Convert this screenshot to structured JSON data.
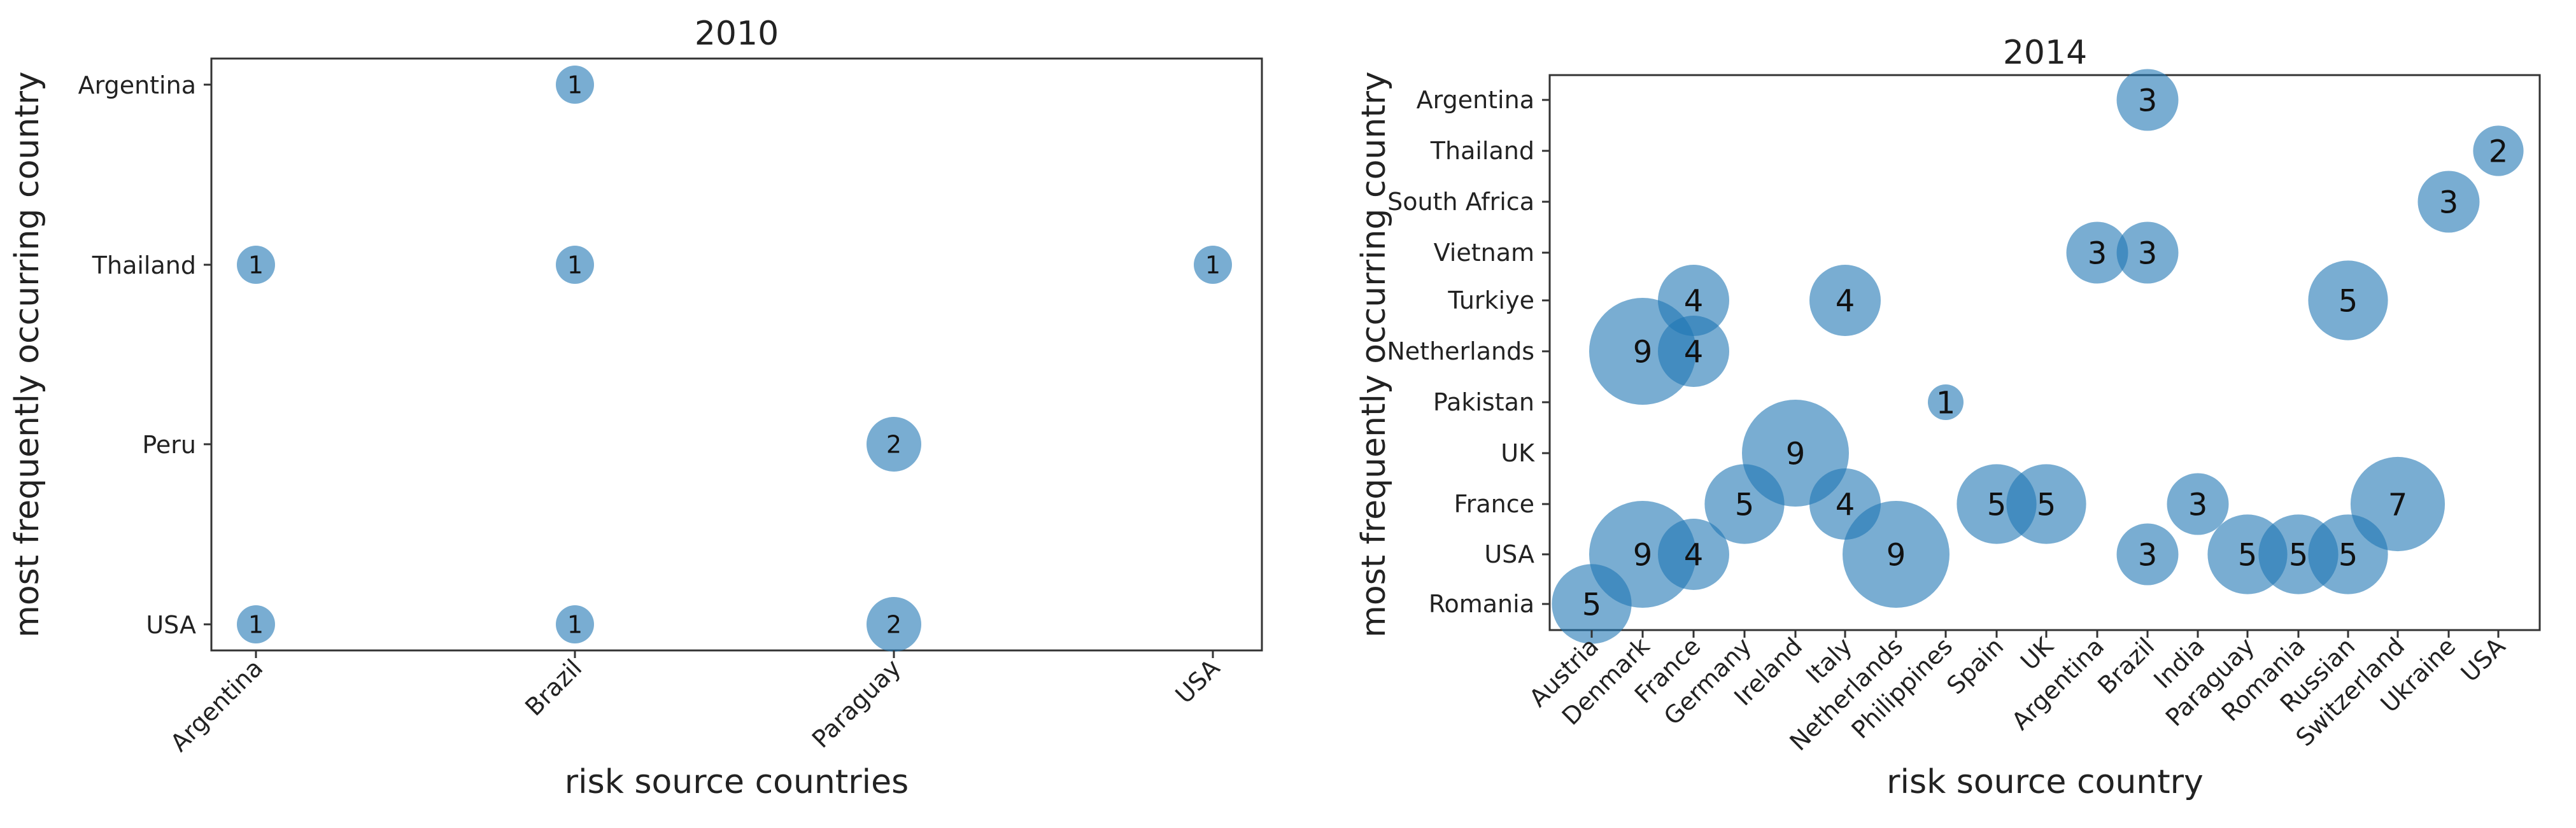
{
  "chart_data": [
    {
      "type": "scatter",
      "title": "2010",
      "xlabel": "risk source countries",
      "ylabel": "most frequently occurring country",
      "x_categories": [
        "Argentina",
        "Brazil",
        "Paraguay",
        "USA"
      ],
      "y_categories": [
        "USA",
        "Peru",
        "Thailand",
        "Argentina"
      ],
      "points": [
        {
          "x": "Brazil",
          "y": "Argentina",
          "value": 1,
          "label": "1"
        },
        {
          "x": "Argentina",
          "y": "Thailand",
          "value": 1,
          "label": "1"
        },
        {
          "x": "Brazil",
          "y": "Thailand",
          "value": 1,
          "label": "1"
        },
        {
          "x": "USA",
          "y": "Thailand",
          "value": 1,
          "label": "1"
        },
        {
          "x": "Paraguay",
          "y": "Peru",
          "value": 2,
          "label": "2"
        },
        {
          "x": "Argentina",
          "y": "USA",
          "value": 1,
          "label": "1"
        },
        {
          "x": "Brazil",
          "y": "USA",
          "value": 1,
          "label": "1"
        },
        {
          "x": "Paraguay",
          "y": "USA",
          "value": 2,
          "label": "2"
        }
      ]
    },
    {
      "type": "scatter",
      "title": "2014",
      "xlabel": "risk source country",
      "ylabel": "most frequently occurring country",
      "x_categories": [
        "Austria",
        "Denmark",
        "France",
        "Germany",
        "Ireland",
        "Italy",
        "Netherlands",
        "Philippines",
        "Spain",
        "UK",
        "Argentina",
        "Brazil",
        "India",
        "Paraguay",
        "Romania",
        "Russian",
        "Switzerland",
        "Ukraine",
        "USA"
      ],
      "y_categories": [
        "Romania",
        "USA",
        "France",
        "UK",
        "Pakistan",
        "Netherlands",
        "Turkiye",
        "Vietnam",
        "South Africa",
        "Thailand",
        "Argentina"
      ],
      "points": [
        {
          "x": 11,
          "y": "Argentina",
          "value": 3,
          "label": "3"
        },
        {
          "x": 18,
          "y": "Thailand",
          "value": 2,
          "label": "2"
        },
        {
          "x": 17,
          "y": "South Africa",
          "value": 3,
          "label": "3"
        },
        {
          "x": 10,
          "y": "Vietnam",
          "value": 3,
          "label": "3"
        },
        {
          "x": 11,
          "y": "Vietnam",
          "value": 3,
          "label": "3"
        },
        {
          "x": 2,
          "y": "Turkiye",
          "value": 4,
          "label": "4"
        },
        {
          "x": 5,
          "y": "Turkiye",
          "value": 4,
          "label": "4"
        },
        {
          "x": 15,
          "y": "Turkiye",
          "value": 5,
          "label": "5"
        },
        {
          "x": 1,
          "y": "Netherlands",
          "value": 9,
          "label": "9"
        },
        {
          "x": 2,
          "y": "Netherlands",
          "value": 4,
          "label": "4"
        },
        {
          "x": 7,
          "y": "Pakistan",
          "value": 1,
          "label": "1"
        },
        {
          "x": 4,
          "y": "UK",
          "value": 9,
          "label": "9"
        },
        {
          "x": 3,
          "y": "France",
          "value": 5,
          "label": "5"
        },
        {
          "x": 5,
          "y": "France",
          "value": 4,
          "label": "4"
        },
        {
          "x": 8,
          "y": "France",
          "value": 5,
          "label": "5"
        },
        {
          "x": 9,
          "y": "France",
          "value": 5,
          "label": "5"
        },
        {
          "x": 12,
          "y": "France",
          "value": 3,
          "label": "3"
        },
        {
          "x": 16,
          "y": "France",
          "value": 7,
          "label": "7"
        },
        {
          "x": 1,
          "y": "USA",
          "value": 9,
          "label": "9"
        },
        {
          "x": 2,
          "y": "USA",
          "value": 4,
          "label": "4"
        },
        {
          "x": 6,
          "y": "USA",
          "value": 9,
          "label": "9"
        },
        {
          "x": 11,
          "y": "USA",
          "value": 3,
          "label": "3"
        },
        {
          "x": 13,
          "y": "USA",
          "value": 5,
          "label": "5"
        },
        {
          "x": 14,
          "y": "USA",
          "value": 5,
          "label": "5"
        },
        {
          "x": 15,
          "y": "USA",
          "value": 5,
          "label": "5"
        },
        {
          "x": 0,
          "y": "Romania",
          "value": 5,
          "label": "5"
        }
      ]
    }
  ],
  "colors": {
    "bubble": "#1f77b4",
    "text": "#222222",
    "axis": "#333333"
  }
}
